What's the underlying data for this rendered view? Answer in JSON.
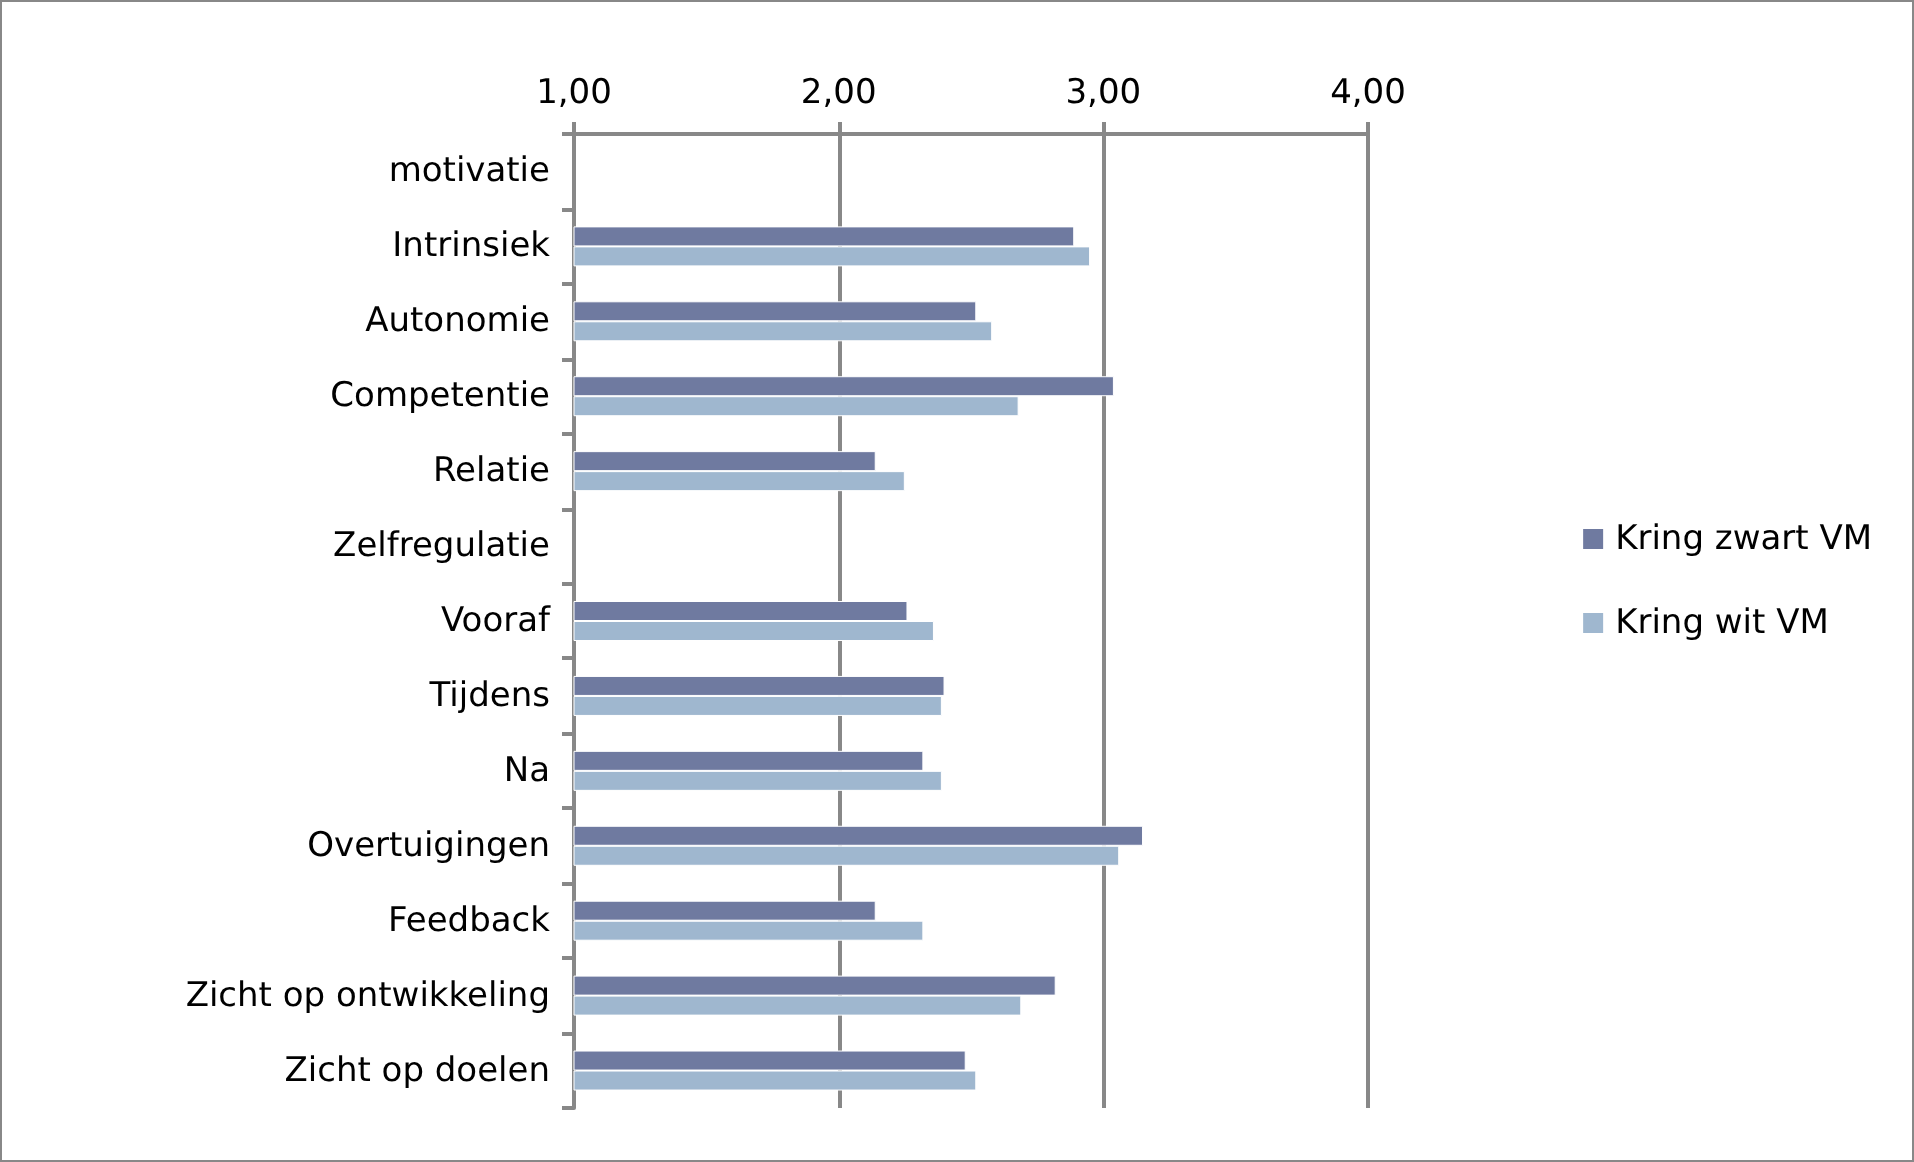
{
  "chart_data": {
    "type": "bar",
    "orientation": "horizontal",
    "categories": [
      "motivatie",
      "Intrinsiek",
      "Autonomie",
      "Competentie",
      "Relatie",
      "Zelfregulatie",
      "Vooraf",
      "Tijdens",
      "Na",
      "Overtuigingen",
      "Feedback",
      "Zicht op ontwikkeling",
      "Zicht op doelen"
    ],
    "series": [
      {
        "name": "Kring zwart VM",
        "color": "#6f7aa0",
        "values": [
          null,
          2.89,
          2.52,
          3.04,
          2.14,
          null,
          2.26,
          2.4,
          2.32,
          3.15,
          2.14,
          2.82,
          2.48
        ]
      },
      {
        "name": "Kring wit VM",
        "color": "#9fb7cf",
        "values": [
          null,
          2.95,
          2.58,
          2.68,
          2.25,
          null,
          2.36,
          2.39,
          2.39,
          3.06,
          2.32,
          2.69,
          2.52
        ]
      }
    ],
    "xlim": [
      1,
      4
    ],
    "xticks": [
      {
        "value": 1,
        "label": "1,00"
      },
      {
        "value": 2,
        "label": "2,00"
      },
      {
        "value": 3,
        "label": "3,00"
      },
      {
        "value": 4,
        "label": "4,00"
      }
    ],
    "grid": "x",
    "legend": "right"
  }
}
